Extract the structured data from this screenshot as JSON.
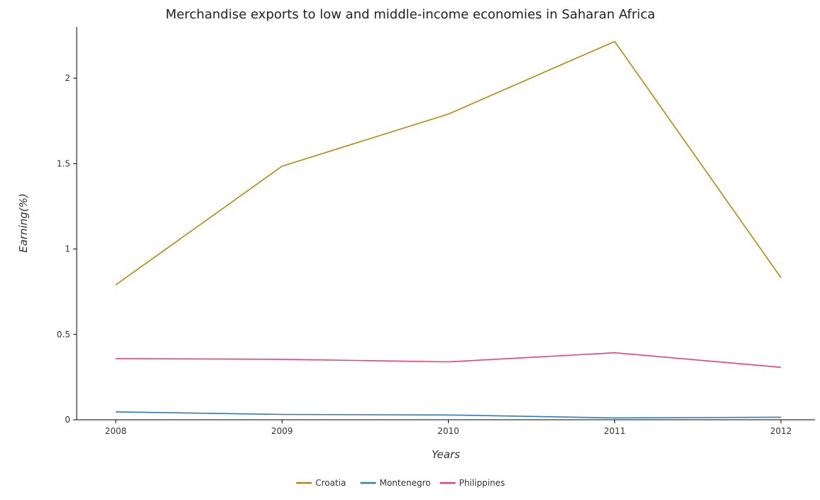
{
  "chart_data": {
    "type": "line",
    "title": "Merchandise exports to low and middle-income economies in Saharan Africa",
    "xlabel": "Years",
    "ylabel": "Earning(%)",
    "categories": [
      "2008",
      "2009",
      "2010",
      "2011",
      "2012"
    ],
    "ylim": [
      0,
      2.3
    ],
    "yticks": [
      0,
      0.5,
      1,
      1.5,
      2
    ],
    "ytick_labels": [
      "0",
      "0.5",
      "1",
      "1.5",
      "2"
    ],
    "grid": false,
    "legend_position": "bottom-center",
    "series": [
      {
        "name": "Croatia",
        "color": "#b8860b",
        "values": [
          0.79,
          1.485,
          1.79,
          2.215,
          0.832
        ]
      },
      {
        "name": "Montenegro",
        "color": "#2e7cbf",
        "values": [
          0.046,
          0.031,
          0.028,
          0.011,
          0.015
        ]
      },
      {
        "name": "Philippines",
        "color": "#e8407a",
        "values": [
          0.358,
          0.354,
          0.339,
          0.392,
          0.307
        ]
      }
    ]
  }
}
